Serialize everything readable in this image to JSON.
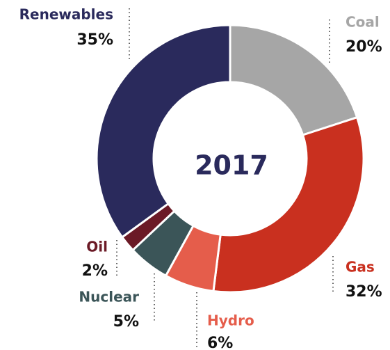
{
  "chart_data": {
    "type": "pie",
    "title": "2017",
    "categories": [
      "Coal",
      "Gas",
      "Hydro",
      "Nuclear",
      "Oil",
      "Renewables"
    ],
    "values": [
      20,
      32,
      6,
      5,
      2,
      35
    ],
    "value_labels": [
      "20%",
      "32%",
      "6%",
      "5%",
      "2%",
      "35%"
    ],
    "colors": [
      "#a6a6a6",
      "#c9301f",
      "#e55d4b",
      "#3b5558",
      "#6b1a26",
      "#2a2a5c"
    ]
  }
}
